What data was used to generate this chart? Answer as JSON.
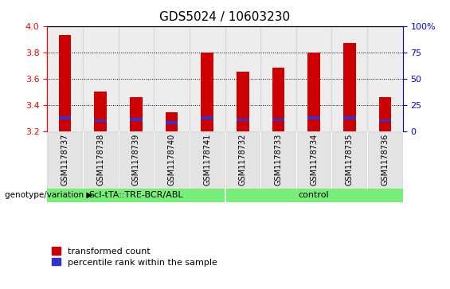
{
  "title": "GDS5024 / 10603230",
  "samples": [
    "GSM1178737",
    "GSM1178738",
    "GSM1178739",
    "GSM1178740",
    "GSM1178741",
    "GSM1178732",
    "GSM1178733",
    "GSM1178734",
    "GSM1178735",
    "GSM1178736"
  ],
  "red_values": [
    3.93,
    3.5,
    3.46,
    3.34,
    3.8,
    3.65,
    3.68,
    3.8,
    3.87,
    3.46
  ],
  "blue_values": [
    3.3,
    3.28,
    3.29,
    3.265,
    3.3,
    3.285,
    3.285,
    3.3,
    3.3,
    3.28
  ],
  "ymin": 3.2,
  "ymax": 4.0,
  "yticks_left": [
    3.2,
    3.4,
    3.6,
    3.8,
    4.0
  ],
  "right_yticks": [
    0,
    25,
    50,
    75,
    100
  ],
  "right_yticklabels": [
    "0",
    "25",
    "50",
    "75",
    "100%"
  ],
  "bar_width": 0.35,
  "red_color": "#cc0000",
  "blue_color": "#3333cc",
  "group1_label": "ScI-tTA::TRE-BCR/ABL",
  "group2_label": "control",
  "group1_indices": [
    0,
    1,
    2,
    3,
    4
  ],
  "group2_indices": [
    5,
    6,
    7,
    8,
    9
  ],
  "group_bg_color": "#77ee77",
  "tick_bg_color": "#cccccc",
  "legend_red": "transformed count",
  "legend_blue": "percentile rank within the sample",
  "genotype_label": "genotype/variation",
  "title_fontsize": 11,
  "tick_fontsize": 8,
  "sample_fontsize": 7
}
